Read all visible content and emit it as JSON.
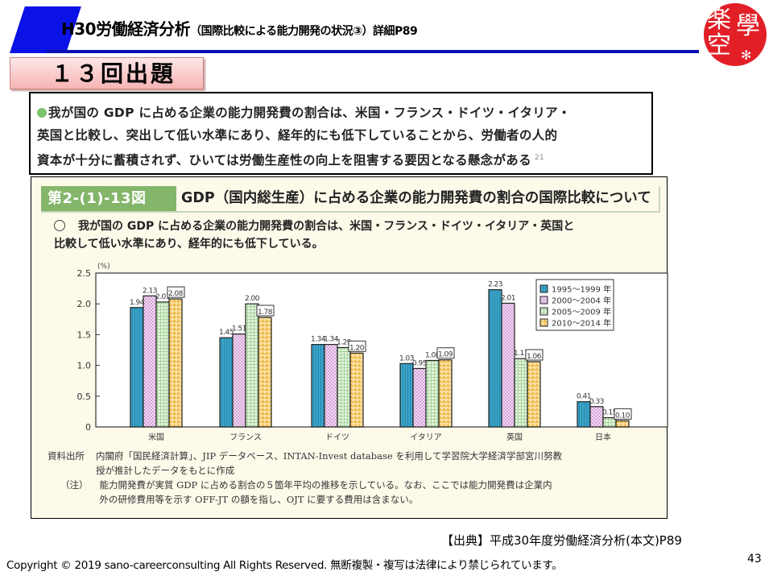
{
  "header": {
    "title_main": "H30労働経済分析",
    "title_sub": "（国際比較による能力開発の状況③）詳細P89",
    "logo_chars": [
      "楽",
      "學",
      "空",
      "✻"
    ]
  },
  "exam_badge": "１３回出題",
  "summary": {
    "lines": [
      "我が国の GDP に占める企業の能力開発費の割合は、米国・フランス・ドイツ・イタリア・",
      "英国と比較し、突出して低い水準にあり、経年的にも低下していることから、労働者の人的",
      "資本が十分に蓄積されず、ひいては労働生産性の向上を阻害する要因となる懸念がある"
    ],
    "footnote": "21"
  },
  "figure": {
    "number": "第2-(1)-13図",
    "title": "GDP（国内総生産）に占める企業の能力開発費の割合の国際比較について",
    "lead_lines": [
      "我が国の GDP に占める企業の能力開発費の割合は、米国・フランス・ドイツ・イタリア・英国と",
      "比較して低い水準にあり、経年的にも低下している。"
    ],
    "source_label": "資料出所",
    "source_lines": [
      "内閣府「国民経済計算」、JIP データベース、INTAN-Invest database を利用して学習院大学経済学部宮川努教",
      "授が推計したデータをもとに作成"
    ],
    "note_label": "（注）",
    "note_lines": [
      "能力開発費が実質 GDP に占める割合の５箇年平均の推移を示している。なお、ここでは能力開発費は企業内",
      "外の研修費用等を示す OFF-JT の額を指し、OJT に要する費用は含まない。"
    ]
  },
  "chart_data": {
    "type": "bar",
    "title": "GDP（国内総生産）に占める企業の能力開発費の割合の国際比較について",
    "xlabel": "",
    "ylabel": "(%)",
    "ylim": [
      0,
      2.5
    ],
    "yticks": [
      0,
      0.5,
      1.0,
      1.5,
      2.0,
      2.5
    ],
    "ytick_labels": [
      "0",
      "0.5",
      "1.0",
      "1.5",
      "2.0",
      "2.5"
    ],
    "grid": false,
    "legend_position": "top-right",
    "categories": [
      "米国",
      "フランス",
      "ドイツ",
      "イタリア",
      "英国",
      "日本"
    ],
    "series": [
      {
        "name": "1995～1999 年",
        "color": "#3aa6cc",
        "pattern": "vertical-lines",
        "values": [
          1.94,
          1.45,
          1.34,
          1.03,
          2.23,
          0.41
        ]
      },
      {
        "name": "2000～2004 年",
        "color": "#e7c4ea",
        "pattern": "checker",
        "values": [
          2.13,
          1.51,
          1.34,
          0.95,
          2.01,
          0.33
        ]
      },
      {
        "name": "2005～2009 年",
        "color": "#cde9c6",
        "pattern": "grid",
        "values": [
          2.03,
          2.0,
          1.29,
          1.08,
          1.11,
          0.15
        ]
      },
      {
        "name": "2010～2014 年",
        "color": "#f6cf72",
        "pattern": "triangles",
        "values": [
          2.08,
          1.78,
          1.2,
          1.09,
          1.06,
          0.1
        ],
        "labels_boxed": true
      }
    ],
    "value_labels": [
      [
        "1.94",
        "1.45",
        "1.34",
        "1.03",
        "2.23",
        "0.41"
      ],
      [
        "2.13",
        "1.51",
        "1.34",
        "0.95",
        "2.01",
        "0.33"
      ],
      [
        "2.03",
        "2.00",
        "1.29",
        "1.08",
        "1.11",
        "0.15"
      ],
      [
        "2.08",
        "1.78",
        "1.20",
        "1.09",
        "1.06",
        "0.10"
      ]
    ]
  },
  "footer": {
    "source": "【出典】平成30年度労働経済分析(本文)P89",
    "copyright": "Copyright © 2019 sano-careerconsulting All Rights Reserved.  無断複製・複写は法律により禁じられています。",
    "page_number": "43"
  }
}
